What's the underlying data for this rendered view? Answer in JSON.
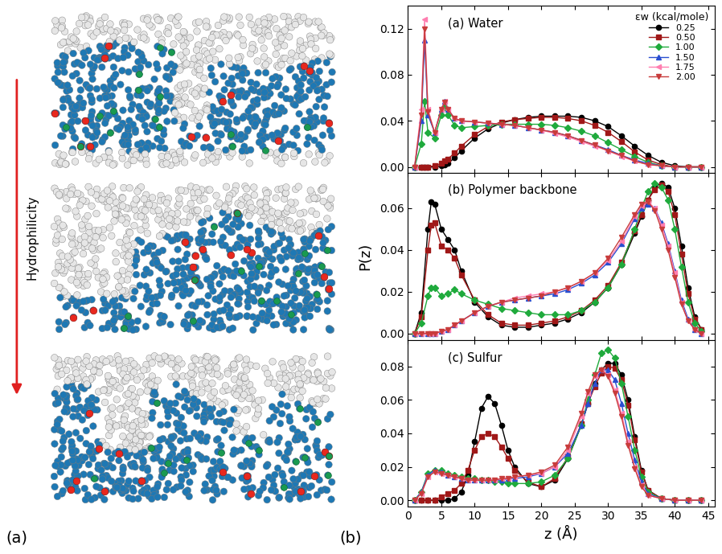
{
  "figure": {
    "panel_labels": [
      "(a)",
      "(b)"
    ],
    "arrow_label": "Hydrophilicity"
  },
  "chart_data": [
    {
      "type": "line",
      "title": "(a) Water",
      "legend": "upper right",
      "legend_title": "εw (kcal/mole)",
      "tick_labels": "y",
      "x": [
        1,
        2,
        2.5,
        3,
        4,
        5,
        5.5,
        6,
        7,
        8,
        10,
        12,
        14,
        16,
        18,
        20,
        22,
        24,
        26,
        28,
        30,
        32,
        34,
        36,
        38,
        40,
        42,
        44
      ],
      "xlim": [
        0,
        46
      ],
      "xticks": [
        0,
        5,
        10,
        15,
        20,
        25,
        30,
        35,
        40,
        45
      ],
      "ylim": [
        -0.005,
        0.14
      ],
      "yticks": [
        {
          "value": 0,
          "label": "0.00"
        },
        {
          "value": 0.04,
          "label": "0.04"
        },
        {
          "value": 0.08,
          "label": "0.08"
        },
        {
          "value": 0.12,
          "label": "0.12"
        }
      ],
      "series": [
        {
          "name": "0.25",
          "color": "#000000",
          "marker": "circle",
          "values": [
            0,
            0,
            0,
            0,
            0,
            0.001,
            0.002,
            0.003,
            0.008,
            0.014,
            0.025,
            0.033,
            0.038,
            0.041,
            0.043,
            0.044,
            0.044,
            0.044,
            0.043,
            0.04,
            0.035,
            0.027,
            0.018,
            0.01,
            0.004,
            0.001,
            0,
            0
          ]
        },
        {
          "name": "0.50",
          "color": "#a01818",
          "marker": "square",
          "values": [
            0,
            0,
            0,
            0,
            0.001,
            0.003,
            0.005,
            0.007,
            0.012,
            0.018,
            0.028,
            0.035,
            0.039,
            0.041,
            0.042,
            0.043,
            0.043,
            0.042,
            0.04,
            0.036,
            0.03,
            0.022,
            0.013,
            0.006,
            0.002,
            0,
            0,
            0
          ]
        },
        {
          "name": "1.00",
          "color": "#1faa3c",
          "marker": "diamond",
          "values": [
            0,
            0.02,
            0.057,
            0.03,
            0.025,
            0.045,
            0.052,
            0.045,
            0.036,
            0.034,
            0.035,
            0.036,
            0.037,
            0.037,
            0.037,
            0.037,
            0.036,
            0.034,
            0.031,
            0.027,
            0.021,
            0.015,
            0.009,
            0.004,
            0.001,
            0,
            0,
            0
          ]
        },
        {
          "name": "1.50",
          "color": "#2a4fd0",
          "marker": "triangle_up",
          "values": [
            0,
            0.04,
            0.11,
            0.045,
            0.03,
            0.05,
            0.057,
            0.05,
            0.042,
            0.04,
            0.039,
            0.038,
            0.037,
            0.036,
            0.034,
            0.032,
            0.03,
            0.027,
            0.023,
            0.019,
            0.015,
            0.01,
            0.006,
            0.003,
            0.001,
            0,
            0,
            0
          ]
        },
        {
          "name": "1.75",
          "color": "#ff7eb0",
          "marker": "triangle_left",
          "values": [
            0,
            0.05,
            0.128,
            0.05,
            0.03,
            0.05,
            0.057,
            0.05,
            0.042,
            0.04,
            0.039,
            0.038,
            0.037,
            0.036,
            0.034,
            0.032,
            0.029,
            0.026,
            0.022,
            0.018,
            0.014,
            0.009,
            0.005,
            0.002,
            0.001,
            0,
            0,
            0
          ]
        },
        {
          "name": "2.00",
          "color": "#c83c3c",
          "marker": "triangle_down",
          "values": [
            0,
            0.045,
            0.12,
            0.048,
            0.03,
            0.05,
            0.056,
            0.05,
            0.042,
            0.04,
            0.039,
            0.038,
            0.037,
            0.036,
            0.034,
            0.032,
            0.03,
            0.027,
            0.023,
            0.019,
            0.014,
            0.01,
            0.005,
            0.002,
            0.001,
            0,
            0,
            0
          ]
        }
      ]
    },
    {
      "type": "line",
      "title": "(b) Polymer backbone",
      "ylabel": "P(z)",
      "tick_labels": "y",
      "x": [
        1,
        2,
        3,
        3.5,
        4,
        5,
        6,
        7,
        8,
        10,
        12,
        14,
        16,
        18,
        20,
        22,
        24,
        26,
        28,
        30,
        32,
        34,
        35,
        36,
        37,
        38,
        39,
        40,
        41,
        42,
        43,
        44
      ],
      "xlim": [
        0,
        46
      ],
      "xticks": [
        0,
        5,
        10,
        15,
        20,
        25,
        30,
        35,
        40,
        45
      ],
      "ylim": [
        -0.003,
        0.077
      ],
      "yticks": [
        {
          "value": 0,
          "label": "0.00"
        },
        {
          "value": 0.02,
          "label": "0.02"
        },
        {
          "value": 0.04,
          "label": "0.04"
        },
        {
          "value": 0.06,
          "label": "0.06"
        }
      ],
      "series": [
        {
          "name": "0.25",
          "color": "#000000",
          "marker": "circle",
          "values": [
            0,
            0.01,
            0.05,
            0.063,
            0.062,
            0.05,
            0.045,
            0.04,
            0.03,
            0.015,
            0.008,
            0.004,
            0.003,
            0.003,
            0.004,
            0.005,
            0.007,
            0.01,
            0.015,
            0.022,
            0.033,
            0.048,
            0.056,
            0.064,
            0.07,
            0.072,
            0.07,
            0.06,
            0.042,
            0.022,
            0.008,
            0.002
          ]
        },
        {
          "name": "0.50",
          "color": "#a01818",
          "marker": "square",
          "values": [
            0,
            0.008,
            0.04,
            0.052,
            0.053,
            0.042,
            0.04,
            0.036,
            0.028,
            0.016,
            0.009,
            0.005,
            0.004,
            0.004,
            0.005,
            0.006,
            0.008,
            0.011,
            0.016,
            0.023,
            0.034,
            0.049,
            0.057,
            0.064,
            0.069,
            0.071,
            0.068,
            0.057,
            0.038,
            0.019,
            0.007,
            0.002
          ]
        },
        {
          "name": "1.00",
          "color": "#1faa3c",
          "marker": "diamond",
          "values": [
            0,
            0.005,
            0.018,
            0.022,
            0.022,
            0.018,
            0.019,
            0.021,
            0.019,
            0.016,
            0.014,
            0.012,
            0.011,
            0.01,
            0.009,
            0.009,
            0.009,
            0.011,
            0.015,
            0.022,
            0.033,
            0.05,
            0.06,
            0.068,
            0.072,
            0.07,
            0.064,
            0.05,
            0.032,
            0.015,
            0.005,
            0.001
          ]
        },
        {
          "name": "1.50",
          "color": "#2a4fd0",
          "marker": "triangle_up",
          "values": [
            0,
            0,
            0,
            0,
            0,
            0.001,
            0.002,
            0.004,
            0.006,
            0.01,
            0.013,
            0.015,
            0.016,
            0.017,
            0.018,
            0.019,
            0.021,
            0.024,
            0.028,
            0.034,
            0.043,
            0.055,
            0.06,
            0.062,
            0.06,
            0.053,
            0.043,
            0.03,
            0.016,
            0.007,
            0.002,
            0
          ]
        },
        {
          "name": "1.75",
          "color": "#ff7eb0",
          "marker": "triangle_left",
          "values": [
            0,
            0,
            0,
            0,
            0,
            0.001,
            0.002,
            0.004,
            0.006,
            0.01,
            0.013,
            0.015,
            0.017,
            0.018,
            0.019,
            0.02,
            0.022,
            0.025,
            0.029,
            0.035,
            0.044,
            0.056,
            0.061,
            0.063,
            0.06,
            0.052,
            0.042,
            0.029,
            0.015,
            0.006,
            0.002,
            0
          ]
        },
        {
          "name": "2.00",
          "color": "#c83c3c",
          "marker": "triangle_down",
          "values": [
            0,
            0,
            0,
            0,
            0,
            0.001,
            0.002,
            0.004,
            0.006,
            0.01,
            0.013,
            0.015,
            0.016,
            0.017,
            0.018,
            0.02,
            0.022,
            0.025,
            0.029,
            0.036,
            0.046,
            0.057,
            0.062,
            0.063,
            0.059,
            0.05,
            0.04,
            0.027,
            0.014,
            0.006,
            0.002,
            0
          ]
        }
      ]
    },
    {
      "type": "line",
      "title": "(c) Sulfur",
      "xlabel": "z (Å)",
      "tick_labels": true,
      "x": [
        1,
        2,
        3,
        4,
        5,
        6,
        7,
        8,
        9,
        10,
        11,
        12,
        13,
        14,
        15,
        16,
        18,
        20,
        22,
        24,
        26,
        27,
        28,
        29,
        30,
        31,
        32,
        33,
        34,
        35,
        36,
        38,
        40,
        42,
        44
      ],
      "xlim": [
        0,
        46
      ],
      "xticks": [
        0,
        5,
        10,
        15,
        20,
        25,
        30,
        35,
        40,
        45
      ],
      "ylim": [
        -0.004,
        0.096
      ],
      "yticks": [
        {
          "value": 0,
          "label": "0.00"
        },
        {
          "value": 0.02,
          "label": "0.02"
        },
        {
          "value": 0.04,
          "label": "0.04"
        },
        {
          "value": 0.06,
          "label": "0.06"
        },
        {
          "value": 0.08,
          "label": "0.08"
        }
      ],
      "series": [
        {
          "name": "0.25",
          "color": "#000000",
          "marker": "circle",
          "values": [
            0,
            0,
            0,
            0,
            0,
            0,
            0.001,
            0.005,
            0.015,
            0.035,
            0.055,
            0.062,
            0.058,
            0.045,
            0.03,
            0.02,
            0.01,
            0.008,
            0.012,
            0.025,
            0.045,
            0.058,
            0.07,
            0.078,
            0.082,
            0.082,
            0.075,
            0.06,
            0.038,
            0.018,
            0.006,
            0.001,
            0,
            0,
            0
          ]
        },
        {
          "name": "0.50",
          "color": "#a01818",
          "marker": "square",
          "values": [
            0,
            0,
            0,
            0,
            0.002,
            0.004,
            0.006,
            0.01,
            0.018,
            0.03,
            0.038,
            0.04,
            0.038,
            0.032,
            0.025,
            0.018,
            0.011,
            0.008,
            0.013,
            0.026,
            0.046,
            0.058,
            0.068,
            0.076,
            0.08,
            0.079,
            0.072,
            0.057,
            0.036,
            0.017,
            0.006,
            0.001,
            0,
            0,
            0
          ]
        },
        {
          "name": "1.00",
          "color": "#1faa3c",
          "marker": "diamond",
          "values": [
            0,
            0.005,
            0.016,
            0.018,
            0.018,
            0.016,
            0.015,
            0.014,
            0.013,
            0.013,
            0.012,
            0.012,
            0.011,
            0.011,
            0.01,
            0.01,
            0.01,
            0.011,
            0.015,
            0.025,
            0.045,
            0.06,
            0.075,
            0.088,
            0.09,
            0.085,
            0.07,
            0.05,
            0.03,
            0.014,
            0.005,
            0.001,
            0,
            0,
            0
          ]
        },
        {
          "name": "1.50",
          "color": "#2a4fd0",
          "marker": "triangle_up",
          "values": [
            0,
            0.005,
            0.015,
            0.018,
            0.017,
            0.015,
            0.014,
            0.013,
            0.012,
            0.012,
            0.012,
            0.012,
            0.012,
            0.012,
            0.013,
            0.013,
            0.014,
            0.016,
            0.02,
            0.028,
            0.045,
            0.058,
            0.07,
            0.078,
            0.078,
            0.072,
            0.058,
            0.04,
            0.024,
            0.011,
            0.004,
            0.001,
            0,
            0,
            0
          ]
        },
        {
          "name": "1.75",
          "color": "#ff7eb0",
          "marker": "triangle_left",
          "values": [
            0,
            0.004,
            0.014,
            0.017,
            0.016,
            0.015,
            0.014,
            0.013,
            0.012,
            0.012,
            0.012,
            0.012,
            0.012,
            0.013,
            0.013,
            0.014,
            0.015,
            0.016,
            0.02,
            0.03,
            0.05,
            0.064,
            0.074,
            0.078,
            0.075,
            0.066,
            0.052,
            0.035,
            0.02,
            0.009,
            0.003,
            0.001,
            0,
            0,
            0
          ]
        },
        {
          "name": "2.00",
          "color": "#c83c3c",
          "marker": "triangle_down",
          "values": [
            0,
            0.004,
            0.014,
            0.017,
            0.016,
            0.015,
            0.014,
            0.013,
            0.012,
            0.012,
            0.012,
            0.012,
            0.012,
            0.013,
            0.013,
            0.014,
            0.015,
            0.017,
            0.021,
            0.032,
            0.052,
            0.065,
            0.075,
            0.078,
            0.074,
            0.064,
            0.05,
            0.033,
            0.019,
            0.008,
            0.003,
            0.001,
            0,
            0,
            0
          ]
        }
      ]
    }
  ]
}
